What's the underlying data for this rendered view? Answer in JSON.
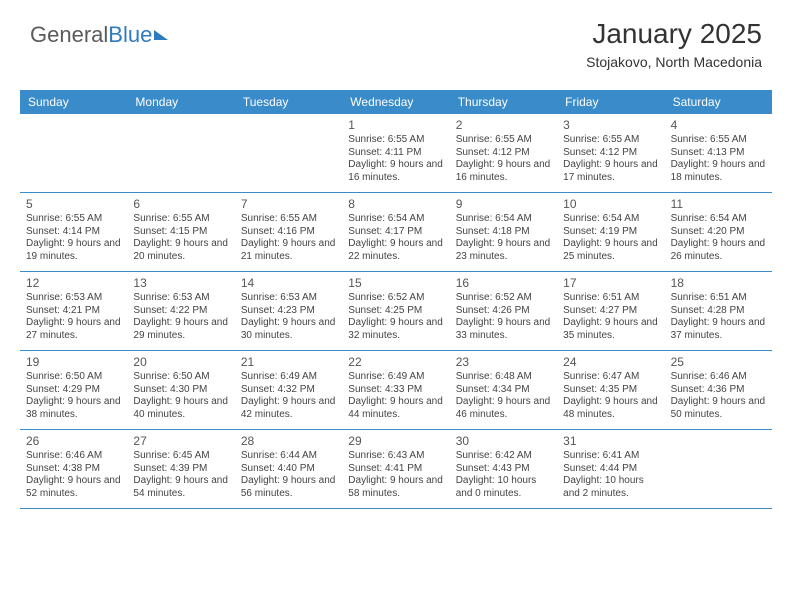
{
  "logo": {
    "part1": "General",
    "part2": "Blue"
  },
  "header": {
    "month_year": "January 2025",
    "location": "Stojakovo, North Macedonia"
  },
  "colors": {
    "header_bg": "#3a8bc9",
    "header_text": "#ffffff",
    "week_divider": "#3a8bc9",
    "body_text": "#444444",
    "daynum_text": "#555555",
    "logo_gray": "#5b5b5b",
    "logo_blue": "#2f7bbf",
    "background": "#ffffff"
  },
  "layout": {
    "columns": 7,
    "day_font_size": 12,
    "content_font_size": 10
  },
  "day_headers": [
    "Sunday",
    "Monday",
    "Tuesday",
    "Wednesday",
    "Thursday",
    "Friday",
    "Saturday"
  ],
  "weeks": [
    [
      {
        "empty": true
      },
      {
        "empty": true
      },
      {
        "empty": true
      },
      {
        "n": "1",
        "sr": "6:55 AM",
        "ss": "4:11 PM",
        "dl": "9 hours and 16 minutes."
      },
      {
        "n": "2",
        "sr": "6:55 AM",
        "ss": "4:12 PM",
        "dl": "9 hours and 16 minutes."
      },
      {
        "n": "3",
        "sr": "6:55 AM",
        "ss": "4:12 PM",
        "dl": "9 hours and 17 minutes."
      },
      {
        "n": "4",
        "sr": "6:55 AM",
        "ss": "4:13 PM",
        "dl": "9 hours and 18 minutes."
      }
    ],
    [
      {
        "n": "5",
        "sr": "6:55 AM",
        "ss": "4:14 PM",
        "dl": "9 hours and 19 minutes."
      },
      {
        "n": "6",
        "sr": "6:55 AM",
        "ss": "4:15 PM",
        "dl": "9 hours and 20 minutes."
      },
      {
        "n": "7",
        "sr": "6:55 AM",
        "ss": "4:16 PM",
        "dl": "9 hours and 21 minutes."
      },
      {
        "n": "8",
        "sr": "6:54 AM",
        "ss": "4:17 PM",
        "dl": "9 hours and 22 minutes."
      },
      {
        "n": "9",
        "sr": "6:54 AM",
        "ss": "4:18 PM",
        "dl": "9 hours and 23 minutes."
      },
      {
        "n": "10",
        "sr": "6:54 AM",
        "ss": "4:19 PM",
        "dl": "9 hours and 25 minutes."
      },
      {
        "n": "11",
        "sr": "6:54 AM",
        "ss": "4:20 PM",
        "dl": "9 hours and 26 minutes."
      }
    ],
    [
      {
        "n": "12",
        "sr": "6:53 AM",
        "ss": "4:21 PM",
        "dl": "9 hours and 27 minutes."
      },
      {
        "n": "13",
        "sr": "6:53 AM",
        "ss": "4:22 PM",
        "dl": "9 hours and 29 minutes."
      },
      {
        "n": "14",
        "sr": "6:53 AM",
        "ss": "4:23 PM",
        "dl": "9 hours and 30 minutes."
      },
      {
        "n": "15",
        "sr": "6:52 AM",
        "ss": "4:25 PM",
        "dl": "9 hours and 32 minutes."
      },
      {
        "n": "16",
        "sr": "6:52 AM",
        "ss": "4:26 PM",
        "dl": "9 hours and 33 minutes."
      },
      {
        "n": "17",
        "sr": "6:51 AM",
        "ss": "4:27 PM",
        "dl": "9 hours and 35 minutes."
      },
      {
        "n": "18",
        "sr": "6:51 AM",
        "ss": "4:28 PM",
        "dl": "9 hours and 37 minutes."
      }
    ],
    [
      {
        "n": "19",
        "sr": "6:50 AM",
        "ss": "4:29 PM",
        "dl": "9 hours and 38 minutes."
      },
      {
        "n": "20",
        "sr": "6:50 AM",
        "ss": "4:30 PM",
        "dl": "9 hours and 40 minutes."
      },
      {
        "n": "21",
        "sr": "6:49 AM",
        "ss": "4:32 PM",
        "dl": "9 hours and 42 minutes."
      },
      {
        "n": "22",
        "sr": "6:49 AM",
        "ss": "4:33 PM",
        "dl": "9 hours and 44 minutes."
      },
      {
        "n": "23",
        "sr": "6:48 AM",
        "ss": "4:34 PM",
        "dl": "9 hours and 46 minutes."
      },
      {
        "n": "24",
        "sr": "6:47 AM",
        "ss": "4:35 PM",
        "dl": "9 hours and 48 minutes."
      },
      {
        "n": "25",
        "sr": "6:46 AM",
        "ss": "4:36 PM",
        "dl": "9 hours and 50 minutes."
      }
    ],
    [
      {
        "n": "26",
        "sr": "6:46 AM",
        "ss": "4:38 PM",
        "dl": "9 hours and 52 minutes."
      },
      {
        "n": "27",
        "sr": "6:45 AM",
        "ss": "4:39 PM",
        "dl": "9 hours and 54 minutes."
      },
      {
        "n": "28",
        "sr": "6:44 AM",
        "ss": "4:40 PM",
        "dl": "9 hours and 56 minutes."
      },
      {
        "n": "29",
        "sr": "6:43 AM",
        "ss": "4:41 PM",
        "dl": "9 hours and 58 minutes."
      },
      {
        "n": "30",
        "sr": "6:42 AM",
        "ss": "4:43 PM",
        "dl": "10 hours and 0 minutes."
      },
      {
        "n": "31",
        "sr": "6:41 AM",
        "ss": "4:44 PM",
        "dl": "10 hours and 2 minutes."
      },
      {
        "empty": true
      }
    ]
  ],
  "labels": {
    "sunrise": "Sunrise:",
    "sunset": "Sunset:",
    "daylight": "Daylight:"
  }
}
